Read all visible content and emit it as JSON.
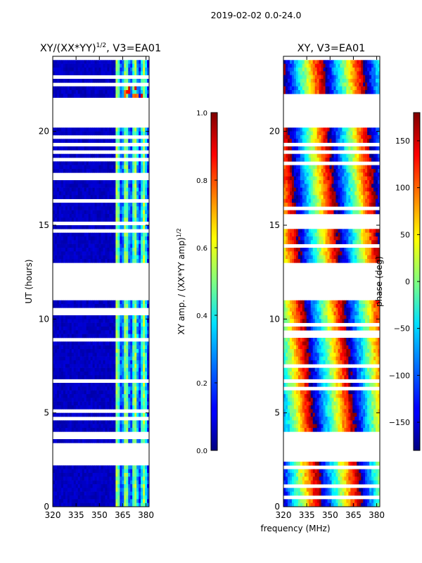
{
  "figure": {
    "suptitle": "2019-02-02 0.0-24.0",
    "shared_xlabel": "frequency (MHz)"
  },
  "chart_data": [
    {
      "type": "heatmap",
      "title_main": "XY/(XX*YY)",
      "title_sup": "1/2",
      "title_rest": ", V3=EA01",
      "xlabel": "frequency (MHz)",
      "ylabel": "UT (hours)",
      "xlim": [
        320,
        382
      ],
      "ylim": [
        0,
        24
      ],
      "xticks": [
        320,
        335,
        350,
        365,
        380
      ],
      "yticks": [
        0,
        5,
        10,
        15,
        20
      ],
      "colorbar": {
        "label_main": "XY amp. / (XX*YY amp)",
        "label_sup": "1/2",
        "range": [
          0.0,
          1.0
        ],
        "ticks": [
          "0.0",
          "0.2",
          "0.4",
          "0.6",
          "0.8",
          "1.0"
        ],
        "colormap": "jet"
      },
      "data_gaps_ut": [
        [
          2.4,
          3.5
        ],
        [
          11.0,
          13.0
        ],
        [
          20.3,
          21.8
        ]
      ],
      "high_value_band_mhz": [
        360,
        382
      ]
    },
    {
      "type": "heatmap",
      "title": "XY, V3=EA01",
      "xlabel": "frequency (MHz)",
      "ylabel": "",
      "xlim": [
        320,
        382
      ],
      "ylim": [
        0,
        24
      ],
      "xticks": [
        320,
        335,
        350,
        365,
        380
      ],
      "yticks": [
        0,
        5,
        10,
        15,
        20
      ],
      "colorbar": {
        "label": "phase (deg)",
        "range": [
          -180,
          180
        ],
        "ticks": [
          "−150",
          "−100",
          "−50",
          "0",
          "50",
          "100",
          "150"
        ],
        "colormap": "jet"
      },
      "data_gaps_ut": [
        [
          2.4,
          3.5
        ],
        [
          11.0,
          13.0
        ],
        [
          20.3,
          21.8
        ]
      ]
    }
  ]
}
